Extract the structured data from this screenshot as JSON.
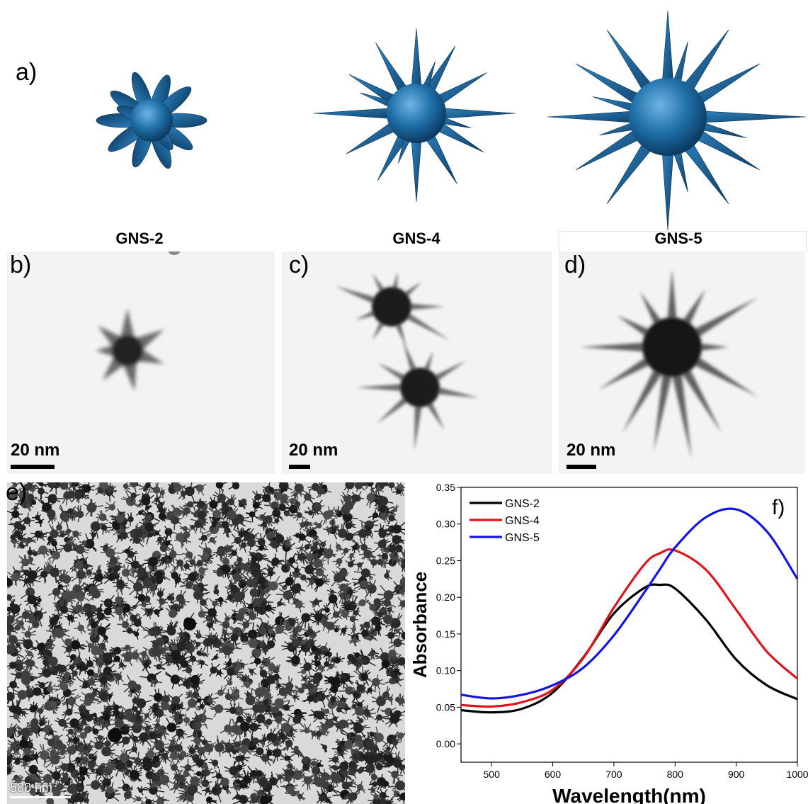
{
  "panels": {
    "a": "a)",
    "b": "b)",
    "c": "c)",
    "d": "d)",
    "e": "e)",
    "f": "f)"
  },
  "models": [
    {
      "label": "GNS-2"
    },
    {
      "label": "GNS-4"
    },
    {
      "label": "GNS-5"
    }
  ],
  "scale_bars": {
    "b": "20 nm",
    "c": "20 nm",
    "d": "20 nm",
    "e": "500 nm"
  },
  "colors": {
    "model_blue": "#1f6fa8",
    "gns2": "#000000",
    "gns4": "#e0141c",
    "gns5": "#1414e6"
  },
  "chart_data": {
    "type": "line",
    "xlabel": "Wavelength(nm)",
    "ylabel": "Absorbance",
    "xlim": [
      450,
      1000
    ],
    "ylim": [
      -0.025,
      0.35
    ],
    "x_ticks": [
      "500",
      "600",
      "700",
      "800",
      "900",
      "1000"
    ],
    "y_ticks": [
      "0.00",
      "0.05",
      "0.10",
      "0.15",
      "0.20",
      "0.25",
      "0.30",
      "0.35"
    ],
    "legend_position": "top-left",
    "x": [
      450,
      500,
      550,
      600,
      650,
      700,
      750,
      775,
      800,
      850,
      900,
      950,
      1000
    ],
    "series": [
      {
        "name": "GNS-2",
        "color": "#000000",
        "values": [
          0.046,
          0.043,
          0.048,
          0.07,
          0.118,
          0.178,
          0.213,
          0.217,
          0.212,
          0.17,
          0.115,
          0.08,
          0.061
        ]
      },
      {
        "name": "GNS-4",
        "color": "#e0141c",
        "values": [
          0.053,
          0.051,
          0.057,
          0.074,
          0.117,
          0.186,
          0.245,
          0.26,
          0.264,
          0.238,
          0.183,
          0.126,
          0.089
        ]
      },
      {
        "name": "GNS-5",
        "color": "#1414e6",
        "values": [
          0.067,
          0.062,
          0.067,
          0.08,
          0.104,
          0.148,
          0.207,
          0.238,
          0.268,
          0.309,
          0.32,
          0.29,
          0.225
        ]
      }
    ]
  }
}
